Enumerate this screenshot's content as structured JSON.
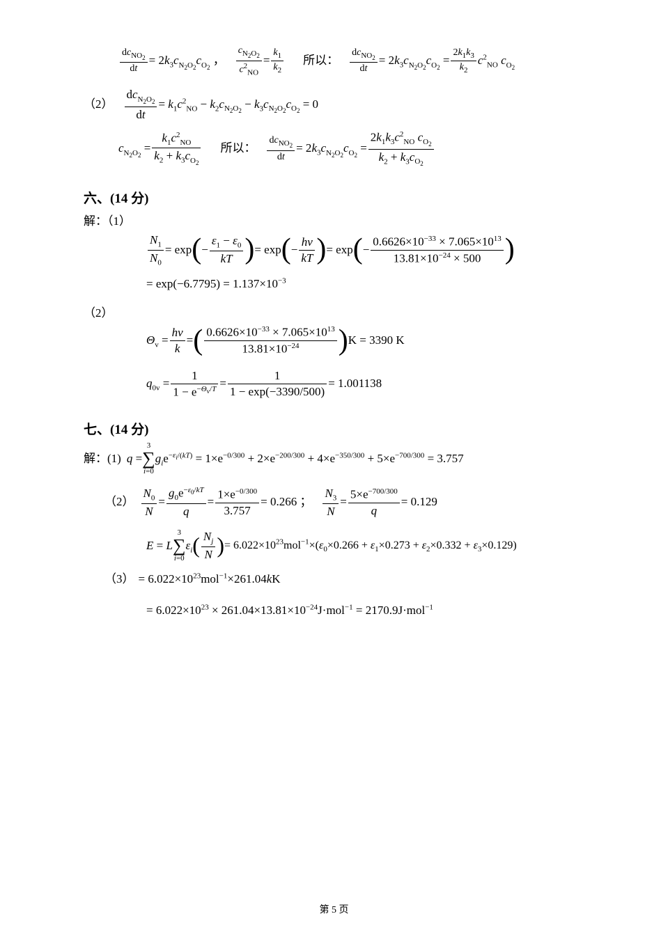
{
  "line1": {
    "a_lhs_num": "d<i>c</i><span class='sub'>NO<span class='ssub'>2</span></span>",
    "a_lhs_den": "d<i>t</i>",
    "a_rhs": "= 2<i>k</i><span class='sub'>3</span><i>c</i><span class='sub'>N<span class='ssub'>2</span>O<span class='ssub'>2</span></span><i>c</i><span class='sub'>O<span class='ssub'>2</span></span> ，",
    "b_num": "<i>c</i><span class='sub'>N<span class='ssub'>2</span>O<span class='ssub'>2</span></span>",
    "b_den": "<i>c</i><span class='sup'>2</span><span class='sub'>NO</span>",
    "b_eq_num": "<i>k</i><span class='sub'>1</span>",
    "b_eq_den": "<i>k</i><span class='sub'>2</span>",
    "so": "所以：",
    "c_lhs_num": "d<i>c</i><span class='sub'>NO<span class='ssub'>2</span></span>",
    "c_lhs_den": "d<i>t</i>",
    "c_mid": "= 2<i>k</i><span class='sub'>3</span><i>c</i><span class='sub'>N<span class='ssub'>2</span>O<span class='ssub'>2</span></span><i>c</i><span class='sub'>O<span class='ssub'>2</span></span> =",
    "c_num": "2<i>k</i><span class='sub'>1</span><i>k</i><span class='sub'>3</span>",
    "c_den": "<i>k</i><span class='sub'>2</span>",
    "c_tail": "<i>c</i><span class='sup'>2</span><span class='sub'>NO</span> <i>c</i><span class='sub'>O<span class='ssub'>2</span></span>"
  },
  "line2": {
    "label": "（2）",
    "lhs_num": "d<i>c</i><span class='sub'>N<span class='ssub'>2</span>O<span class='ssub'>2</span></span>",
    "lhs_den": "d<i>t</i>",
    "rhs": "= <i>k</i><span class='sub'>1</span><i>c</i><span class='sup'>2</span><span class='sub'>NO</span> − <i>k</i><span class='sub'>2</span><i>c</i><span class='sub'>N<span class='ssub'>2</span>O<span class='ssub'>2</span></span> − <i>k</i><span class='sub'>3</span><i>c</i><span class='sub'>N<span class='ssub'>2</span>O<span class='ssub'>2</span></span><i>c</i><span class='sub'>O<span class='ssub'>2</span></span> = 0"
  },
  "line3": {
    "a_lhs": "<i>c</i><span class='sub'>N<span class='ssub'>2</span>O<span class='ssub'>2</span></span> =",
    "a_num": "<i>k</i><span class='sub'>1</span><i>c</i><span class='sup'>2</span><span class='sub'>NO</span>",
    "a_den": "<i>k</i><span class='sub'>2</span> + <i>k</i><span class='sub'>3</span><i>c</i><span class='sub'>O<span class='ssub'>2</span></span>",
    "so": "所以：",
    "b_num": "d<i>c</i><span class='sub'>NO<span class='ssub'>2</span></span>",
    "b_den": "d<i>t</i>",
    "b_mid": "= 2<i>k</i><span class='sub'>3</span><i>c</i><span class='sub'>N<span class='ssub'>2</span>O<span class='ssub'>2</span></span><i>c</i><span class='sub'>O<span class='ssub'>2</span></span> =",
    "c_num": "2<i>k</i><span class='sub'>1</span><i>k</i><span class='sub'>3</span><i>c</i><span class='sup'>2</span><span class='sub'>NO</span> <i>c</i><span class='sub'>O<span class='ssub'>2</span></span>",
    "c_den": "<i>k</i><span class='sub'>2</span> + <i>k</i><span class='sub'>3</span><i>c</i><span class='sub'>O<span class='ssub'>2</span></span>"
  },
  "sec6": {
    "head": "六、(14 分)",
    "solve": "解：（1）",
    "eq1_a_num": "<i>N</i><span class='sub'>1</span>",
    "eq1_a_den": "<i>N</i><span class='sub'>0</span>",
    "eq1_b": "= exp",
    "eq1_c": "−",
    "eq1_c_num": "<i>ε</i><span class='sub'>1</span> − <i>ε</i><span class='sub'>0</span>",
    "eq1_c_den": "<i>kT</i>",
    "eq1_d": "= exp",
    "eq1_d_num": "<i>hν</i>",
    "eq1_d_den": "<i>kT</i>",
    "eq1_e": "= exp",
    "eq1_e_num": "0.6626×10<span class='sup'>−33</span> × 7.065×10<span class='sup'>13</span>",
    "eq1_e_den": "13.81×10<span class='sup'>−24</span> × 500",
    "eq1_line2": "= exp(−6.7795) = 1.137×10<span class='sup'>−3</span>",
    "part2": "（2）",
    "theta_lhs": "<i>Θ</i><span class='sub'>v</span> =",
    "theta_a_num": "<i>hν</i>",
    "theta_a_den": "<i>k</i>",
    "theta_b_num": "0.6626×10<span class='sup'>−33</span> × 7.065×10<span class='sup'>13</span>",
    "theta_b_den": "13.81×10<span class='sup'>−24</span>",
    "theta_tail": "K = 3390 K",
    "q_lhs": "<i>q</i><span class='sub'>0v</span> =",
    "q_a_num": "1",
    "q_a_den": "1 − e<span class='sup'>−<i>Θ</i><span class='ssub'>v</span>/<i>T</i></span>",
    "q_b_num": "1",
    "q_b_den": "1 − exp(−3390/500)",
    "q_tail": "= 1.001138"
  },
  "sec7": {
    "head": "七、(14 分)",
    "solve": "解：(1)",
    "q_lhs": "<i>q</i> =",
    "sum_top": "3",
    "sum_bot": "<i>i</i>=0",
    "q_mid": "<i>g<span class='sub'>i</span></i>e<span class='sup'>−<i>ε<span class='ssub'>i</span></i>/(<i>kT</i>)</span> = 1×e<span class='sup'>−0/300</span> + 2×e<span class='sup'>−200/300</span> + 4×e<span class='sup'>−350/300</span> + 5×e<span class='sup'>−700/300</span> = 3.757",
    "p2": "（2）",
    "p2a_num": "<i>N</i><span class='sub'>0</span>",
    "p2a_den": "<i>N</i>",
    "p2b_num": "<i>g</i><span class='sub'>0</span>e<span class='sup'>−<i>ε</i><span class='ssub'>0</span>/<i>kT</i></span>",
    "p2b_den": "<i>q</i>",
    "p2c_num": "1×e<span class='sup'>−0/300</span>",
    "p2c_den": "3.757",
    "p2c_tail": "= 0.266 ；",
    "p2d_num": "<i>N</i><span class='sub'>3</span>",
    "p2d_den": "<i>N</i>",
    "p2e_num": "5×e<span class='sup'>−700/300</span>",
    "p2e_den": "<i>q</i>",
    "p2e_tail": "= 0.129",
    "E_lhs": "<i>E</i> = <i>L</i>",
    "E_sum_top": "3",
    "E_sum_bot": "<i>i</i>=0",
    "E_mid": "<i>ε<span class='sub'>i</span></i>",
    "E_frac_num": "<i>N<span class='sub'>j</span></i>",
    "E_frac_den": "<i>N</i>",
    "E_tail": "= 6.022×10<span class='sup'>23</span>mol<span class='sup'>−1</span>×(<i>ε</i><span class='sub'>0</span>×0.266 + <i>ε</i><span class='sub'>1</span>×0.273 + <i>ε</i><span class='sub'>2</span>×0.332 + <i>ε</i><span class='sub'>3</span>×0.129)",
    "p3": "（3）",
    "p3_line1": "= 6.022×10<span class='sup'>23</span>mol<span class='sup'>−1</span>×261.04<i>k</i>K",
    "p3_line2": "= 6.022×10<span class='sup'>23</span> × 261.04×13.81×10<span class='sup'>−24</span>J·mol<span class='sup'>−1</span> = 2170.9J·mol<span class='sup'>−1</span>"
  },
  "footer": "第 5   页"
}
